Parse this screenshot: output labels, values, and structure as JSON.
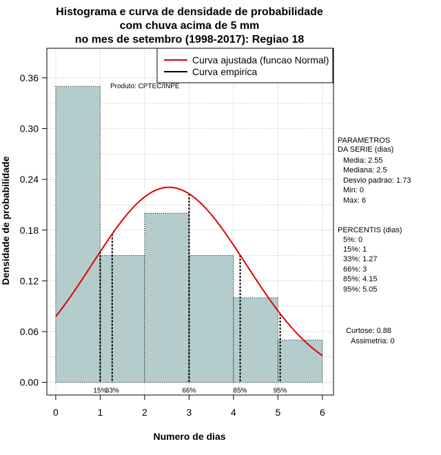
{
  "chart_data": {
    "type": "bar",
    "title_lines": [
      "Histograma e curva de densidade de probabilidade",
      "com chuva acima de 5 mm",
      "no mes de setembro (1998-2017): Regiao 18"
    ],
    "xlabel": "Numero de dias",
    "ylabel": "Densidade de probabilidade",
    "xlim": [
      -0.2,
      6.25
    ],
    "ylim": [
      -0.015,
      0.395
    ],
    "xticks": [
      "0",
      "1",
      "2",
      "3",
      "4",
      "5",
      "6"
    ],
    "yticks": [
      "0.00",
      "0.06",
      "0.12",
      "0.18",
      "0.24",
      "0.30",
      "0.36"
    ],
    "bins": [
      {
        "from": 0,
        "to": 1,
        "density": 0.35
      },
      {
        "from": 1,
        "to": 2,
        "density": 0.15
      },
      {
        "from": 2,
        "to": 3,
        "density": 0.2
      },
      {
        "from": 3,
        "to": 4,
        "density": 0.15
      },
      {
        "from": 4,
        "to": 5,
        "density": 0.1
      },
      {
        "from": 5,
        "to": 6,
        "density": 0.05
      }
    ],
    "normal_fit": {
      "mean": 2.55,
      "sd": 1.73,
      "color": "#dd0000"
    },
    "percentile_markers": [
      {
        "label": "15%",
        "x": 1.0
      },
      {
        "label": "33%",
        "x": 1.27
      },
      {
        "label": "66%",
        "x": 3.0
      },
      {
        "label": "85%",
        "x": 4.15
      },
      {
        "label": "95%",
        "x": 5.05
      }
    ],
    "legend": [
      {
        "label": "Curva ajustada (funcao Normal)",
        "color": "#dd0000"
      },
      {
        "label": "Curva empirica",
        "color": "#000000"
      }
    ],
    "credit": "Produto: CPTEC/INPE",
    "bar_color": "#b4cccc",
    "grid": true
  },
  "side_panel": {
    "params_title": [
      "PARAMETROS",
      "DA SERIE (dias)"
    ],
    "params": [
      "Media: 2.55",
      "Mediana: 2.5",
      "Desvio padrao: 1.73",
      "Min: 0",
      "Max: 6"
    ],
    "percentis_title": "PERCENTIS (dias)",
    "percentis": [
      "5%: 0",
      "15%: 1",
      "33%: 1.27",
      "66%: 3",
      "85%: 4.15",
      "95%: 5.05"
    ],
    "curtose": "Curtose: 0.88",
    "assimetria": "Assimetria: 0"
  }
}
